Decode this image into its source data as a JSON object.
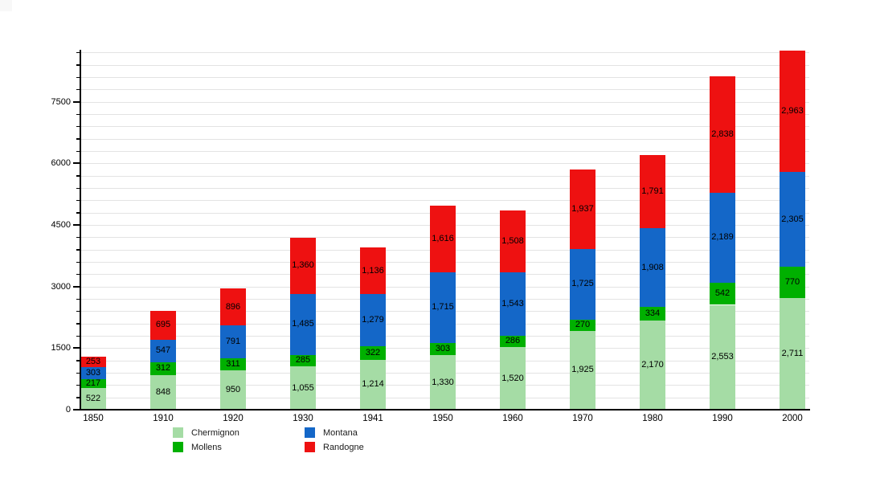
{
  "chart_data": {
    "type": "bar",
    "stacked": true,
    "title": "",
    "xlabel": "",
    "ylabel": "",
    "categories": [
      "1850",
      "1910",
      "1920",
      "1930",
      "1941",
      "1950",
      "1960",
      "1970",
      "1980",
      "1990",
      "2000"
    ],
    "series": [
      {
        "name": "Chermignon",
        "color": "#a5dca5",
        "values": [
          522,
          848,
          950,
          1055,
          1214,
          1330,
          1520,
          1925,
          2170,
          2553,
          2711
        ]
      },
      {
        "name": "Mollens",
        "color": "#00b000",
        "values": [
          217,
          312,
          311,
          285,
          322,
          303,
          286,
          270,
          334,
          542,
          770
        ]
      },
      {
        "name": "Montana",
        "color": "#1467c8",
        "values": [
          303,
          547,
          791,
          1485,
          1279,
          1715,
          1543,
          1725,
          1908,
          2189,
          2305
        ]
      },
      {
        "name": "Randogne",
        "color": "#ee1111",
        "values": [
          253,
          695,
          896,
          1360,
          1136,
          1616,
          1508,
          1937,
          1791,
          2838,
          2963
        ]
      }
    ],
    "ylim": [
      0,
      9000
    ],
    "yticks": [
      0,
      1500,
      3000,
      4500,
      6000,
      7500
    ],
    "minor_grid_step": 300,
    "grid": true,
    "legend_position": "bottom-left",
    "value_labels": "thousands-comma"
  },
  "colors": {
    "background": "#ffffff",
    "grid": "#e3e3e3",
    "axis": "#000000",
    "text": "#000000",
    "legend_text": "#1a1a1a"
  }
}
